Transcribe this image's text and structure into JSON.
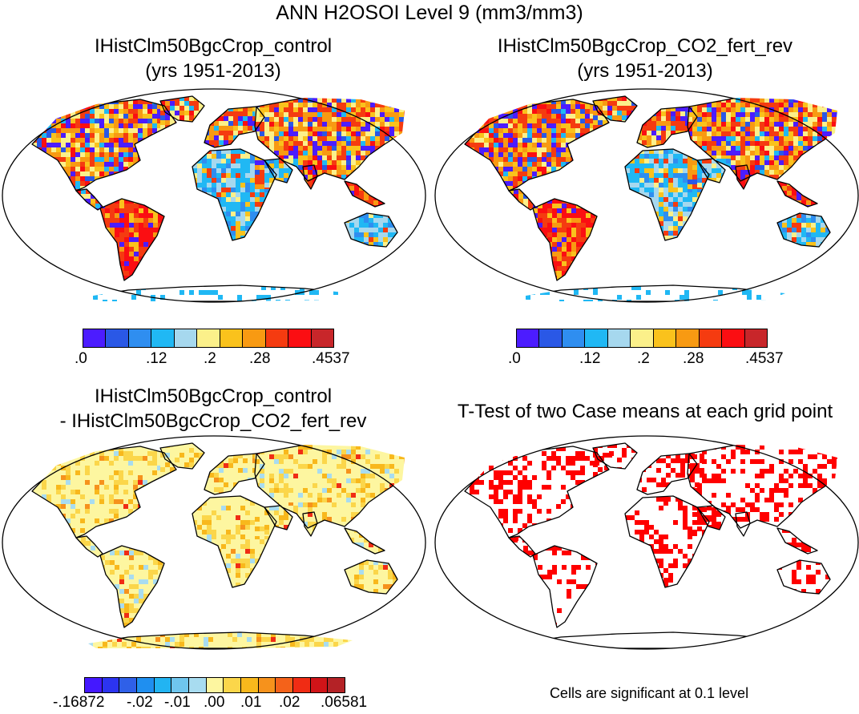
{
  "title": "ANN H2OSOI Level 9 (mm3/mm3)",
  "panels": {
    "p1": {
      "title": "IHistClm50BgcCrop_control",
      "subtitle": "(yrs 1951-2013)"
    },
    "p2": {
      "title": "IHistClm50BgcCrop_CO2_fert_rev",
      "subtitle": "(yrs 1951-2013)"
    },
    "p3": {
      "title": "IHistClm50BgcCrop_control",
      "subtitle": "- IHistClm50BgcCrop_CO2_fert_rev"
    },
    "p4": {
      "title": "T-Test of two Case means at each grid point",
      "note": "Cells are significant at 0.1 level"
    }
  },
  "colorbar_main": {
    "colors": [
      "#4c1cff",
      "#2a58e6",
      "#2f8ef0",
      "#20b8f4",
      "#a6d8ee",
      "#fbf08a",
      "#fac21c",
      "#f89a12",
      "#f53b10",
      "#fb0e12",
      "#c8262a"
    ],
    "labels": [
      ".0",
      ".12",
      ".2",
      ".28",
      ".4537"
    ]
  },
  "colorbar_diff": {
    "colors": [
      "#4418ff",
      "#2c34f0",
      "#2f60e8",
      "#1f8ff0",
      "#22b4f2",
      "#6fc6ee",
      "#a8dcf0",
      "#fdf6a0",
      "#fbd64a",
      "#f8b81c",
      "#f6921c",
      "#f4621a",
      "#f02c14",
      "#d01418",
      "#b42226"
    ],
    "labels": [
      "-.16872",
      "-.02",
      "-.01",
      ".00",
      ".01",
      ".02",
      ".06581"
    ]
  }
}
